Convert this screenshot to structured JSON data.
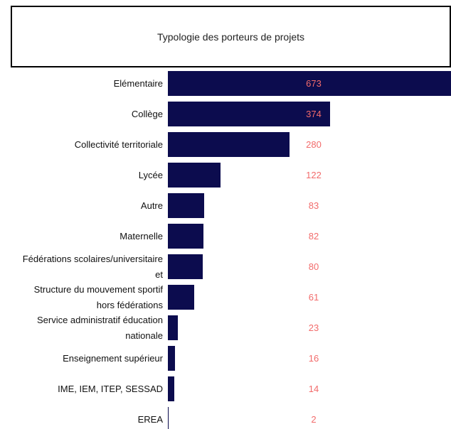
{
  "chart_data": {
    "type": "bar",
    "orientation": "horizontal",
    "title": "Typologie des porteurs de projets",
    "categories": [
      "Elémentaire",
      "Collège",
      "Collectivité territoriale",
      "Lycée",
      "Autre",
      "Maternelle",
      "Fédérations scolaires/universitaire et",
      "Structure du mouvement sportif hors fédérations",
      "Service administratif éducation nationale",
      "Enseignement supérieur",
      "IME, IEM, ITEP, SESSAD",
      "EREA"
    ],
    "values": [
      673,
      374,
      280,
      122,
      83,
      82,
      80,
      61,
      23,
      16,
      14,
      2
    ],
    "color": "#0c0c4e",
    "label_color": "#f26b6b"
  }
}
